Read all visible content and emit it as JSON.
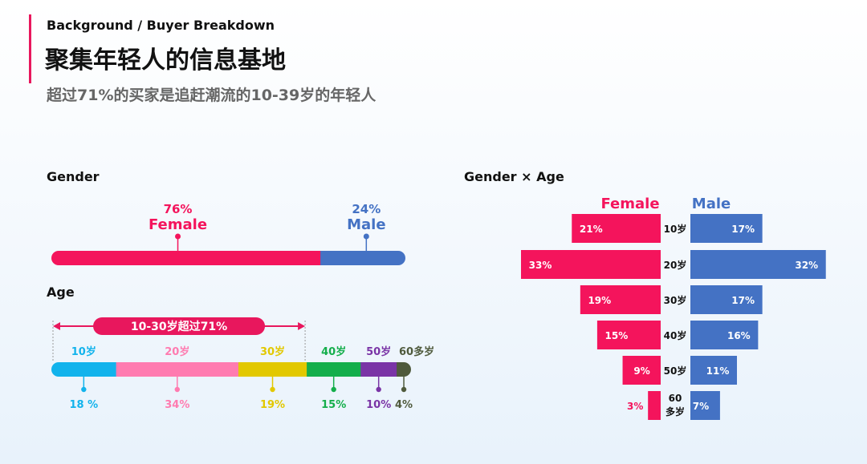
{
  "header": {
    "eyebrow": "Background / Buyer Breakdown",
    "title": "聚集年轻人的信息基地",
    "subtitle": "超过71%的买家是追赶潮流的10-39岁的年轻人"
  },
  "colors": {
    "accent": "#e8175d",
    "female": "#f4145c",
    "male": "#4472c4"
  },
  "chart_data": [
    {
      "type": "bar",
      "title": "Gender",
      "orientation": "stacked-horizontal",
      "categories": [
        "Female",
        "Male"
      ],
      "values": [
        76,
        24
      ],
      "value_labels": [
        "76%",
        "24%"
      ],
      "colors": [
        "#f4145c",
        "#4472c4"
      ]
    },
    {
      "type": "bar",
      "title": "Age",
      "orientation": "stacked-horizontal",
      "categories": [
        "10岁",
        "20岁",
        "30岁",
        "40岁",
        "50岁",
        "60多岁"
      ],
      "values": [
        18,
        34,
        19,
        15,
        10,
        4
      ],
      "value_labels": [
        "18 %",
        "34%",
        "19%",
        "15%",
        "10%",
        "4%"
      ],
      "colors": [
        "#12b3ec",
        "#ff7bb0",
        "#e2c800",
        "#14ae4b",
        "#7a34a6",
        "#4f5a3c"
      ],
      "annotation": "10-30岁超过71%"
    },
    {
      "type": "bar",
      "title": "Gender × Age",
      "orientation": "population-pyramid",
      "categories": [
        "10岁",
        "20岁",
        "30岁",
        "40岁",
        "50岁",
        "60\n多岁"
      ],
      "series": [
        {
          "name": "Female",
          "values": [
            21,
            33,
            19,
            15,
            9,
            3
          ],
          "labels": [
            "21%",
            "33%",
            "19%",
            "15%",
            "9%",
            "3%"
          ],
          "color": "#f4145c"
        },
        {
          "name": "Male",
          "values": [
            17,
            32,
            17,
            16,
            11,
            7
          ],
          "labels": [
            "17%",
            "32%",
            "17%",
            "16%",
            "11%",
            "7%"
          ],
          "color": "#4472c4"
        }
      ]
    }
  ]
}
